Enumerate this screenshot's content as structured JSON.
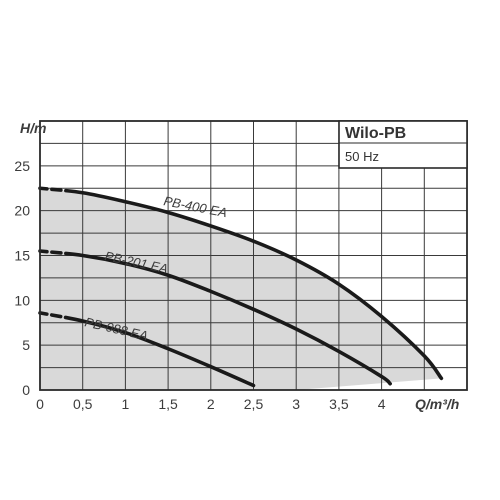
{
  "chart_data": {
    "type": "line",
    "xlabel": "Q/m³/h",
    "ylabel": "H/m",
    "xlim": [
      0,
      5
    ],
    "ylim": [
      0,
      30
    ],
    "x_ticks": [
      "0",
      "0,5",
      "1",
      "1,5",
      "2",
      "2,5",
      "3",
      "3,5",
      "4"
    ],
    "x_tick_values": [
      0,
      0.5,
      1,
      1.5,
      2,
      2.5,
      3,
      3.5,
      4
    ],
    "y_ticks": [
      "0",
      "5",
      "10",
      "15",
      "20",
      "25"
    ],
    "y_tick_values": [
      0,
      5,
      10,
      15,
      20,
      25
    ],
    "grid": true,
    "legend_box": {
      "title": "Wilo-PB",
      "subtitle": "50 Hz",
      "placement": "top-right"
    },
    "fill_color": "#d9d9d9",
    "line_color": "#1a1a1a",
    "series": [
      {
        "name": "PB-400 EA",
        "x": [
          0,
          0.5,
          1,
          1.5,
          2,
          2.5,
          3,
          3.5,
          4,
          4.5,
          4.7
        ],
        "y": [
          22.5,
          22.0,
          21.0,
          19.8,
          18.3,
          16.6,
          14.5,
          11.8,
          8.2,
          3.8,
          1.3
        ]
      },
      {
        "name": "PB-201 EA",
        "x": [
          0,
          0.5,
          1,
          1.5,
          2,
          2.5,
          3,
          3.5,
          4,
          4.1
        ],
        "y": [
          15.5,
          15.0,
          14.1,
          12.8,
          11.0,
          9.0,
          6.8,
          4.3,
          1.5,
          0.7
        ]
      },
      {
        "name": "PB-088 EA",
        "x": [
          0,
          0.5,
          1,
          1.5,
          2,
          2.5
        ],
        "y": [
          8.6,
          7.7,
          6.4,
          4.6,
          2.6,
          0.5
        ]
      }
    ]
  }
}
